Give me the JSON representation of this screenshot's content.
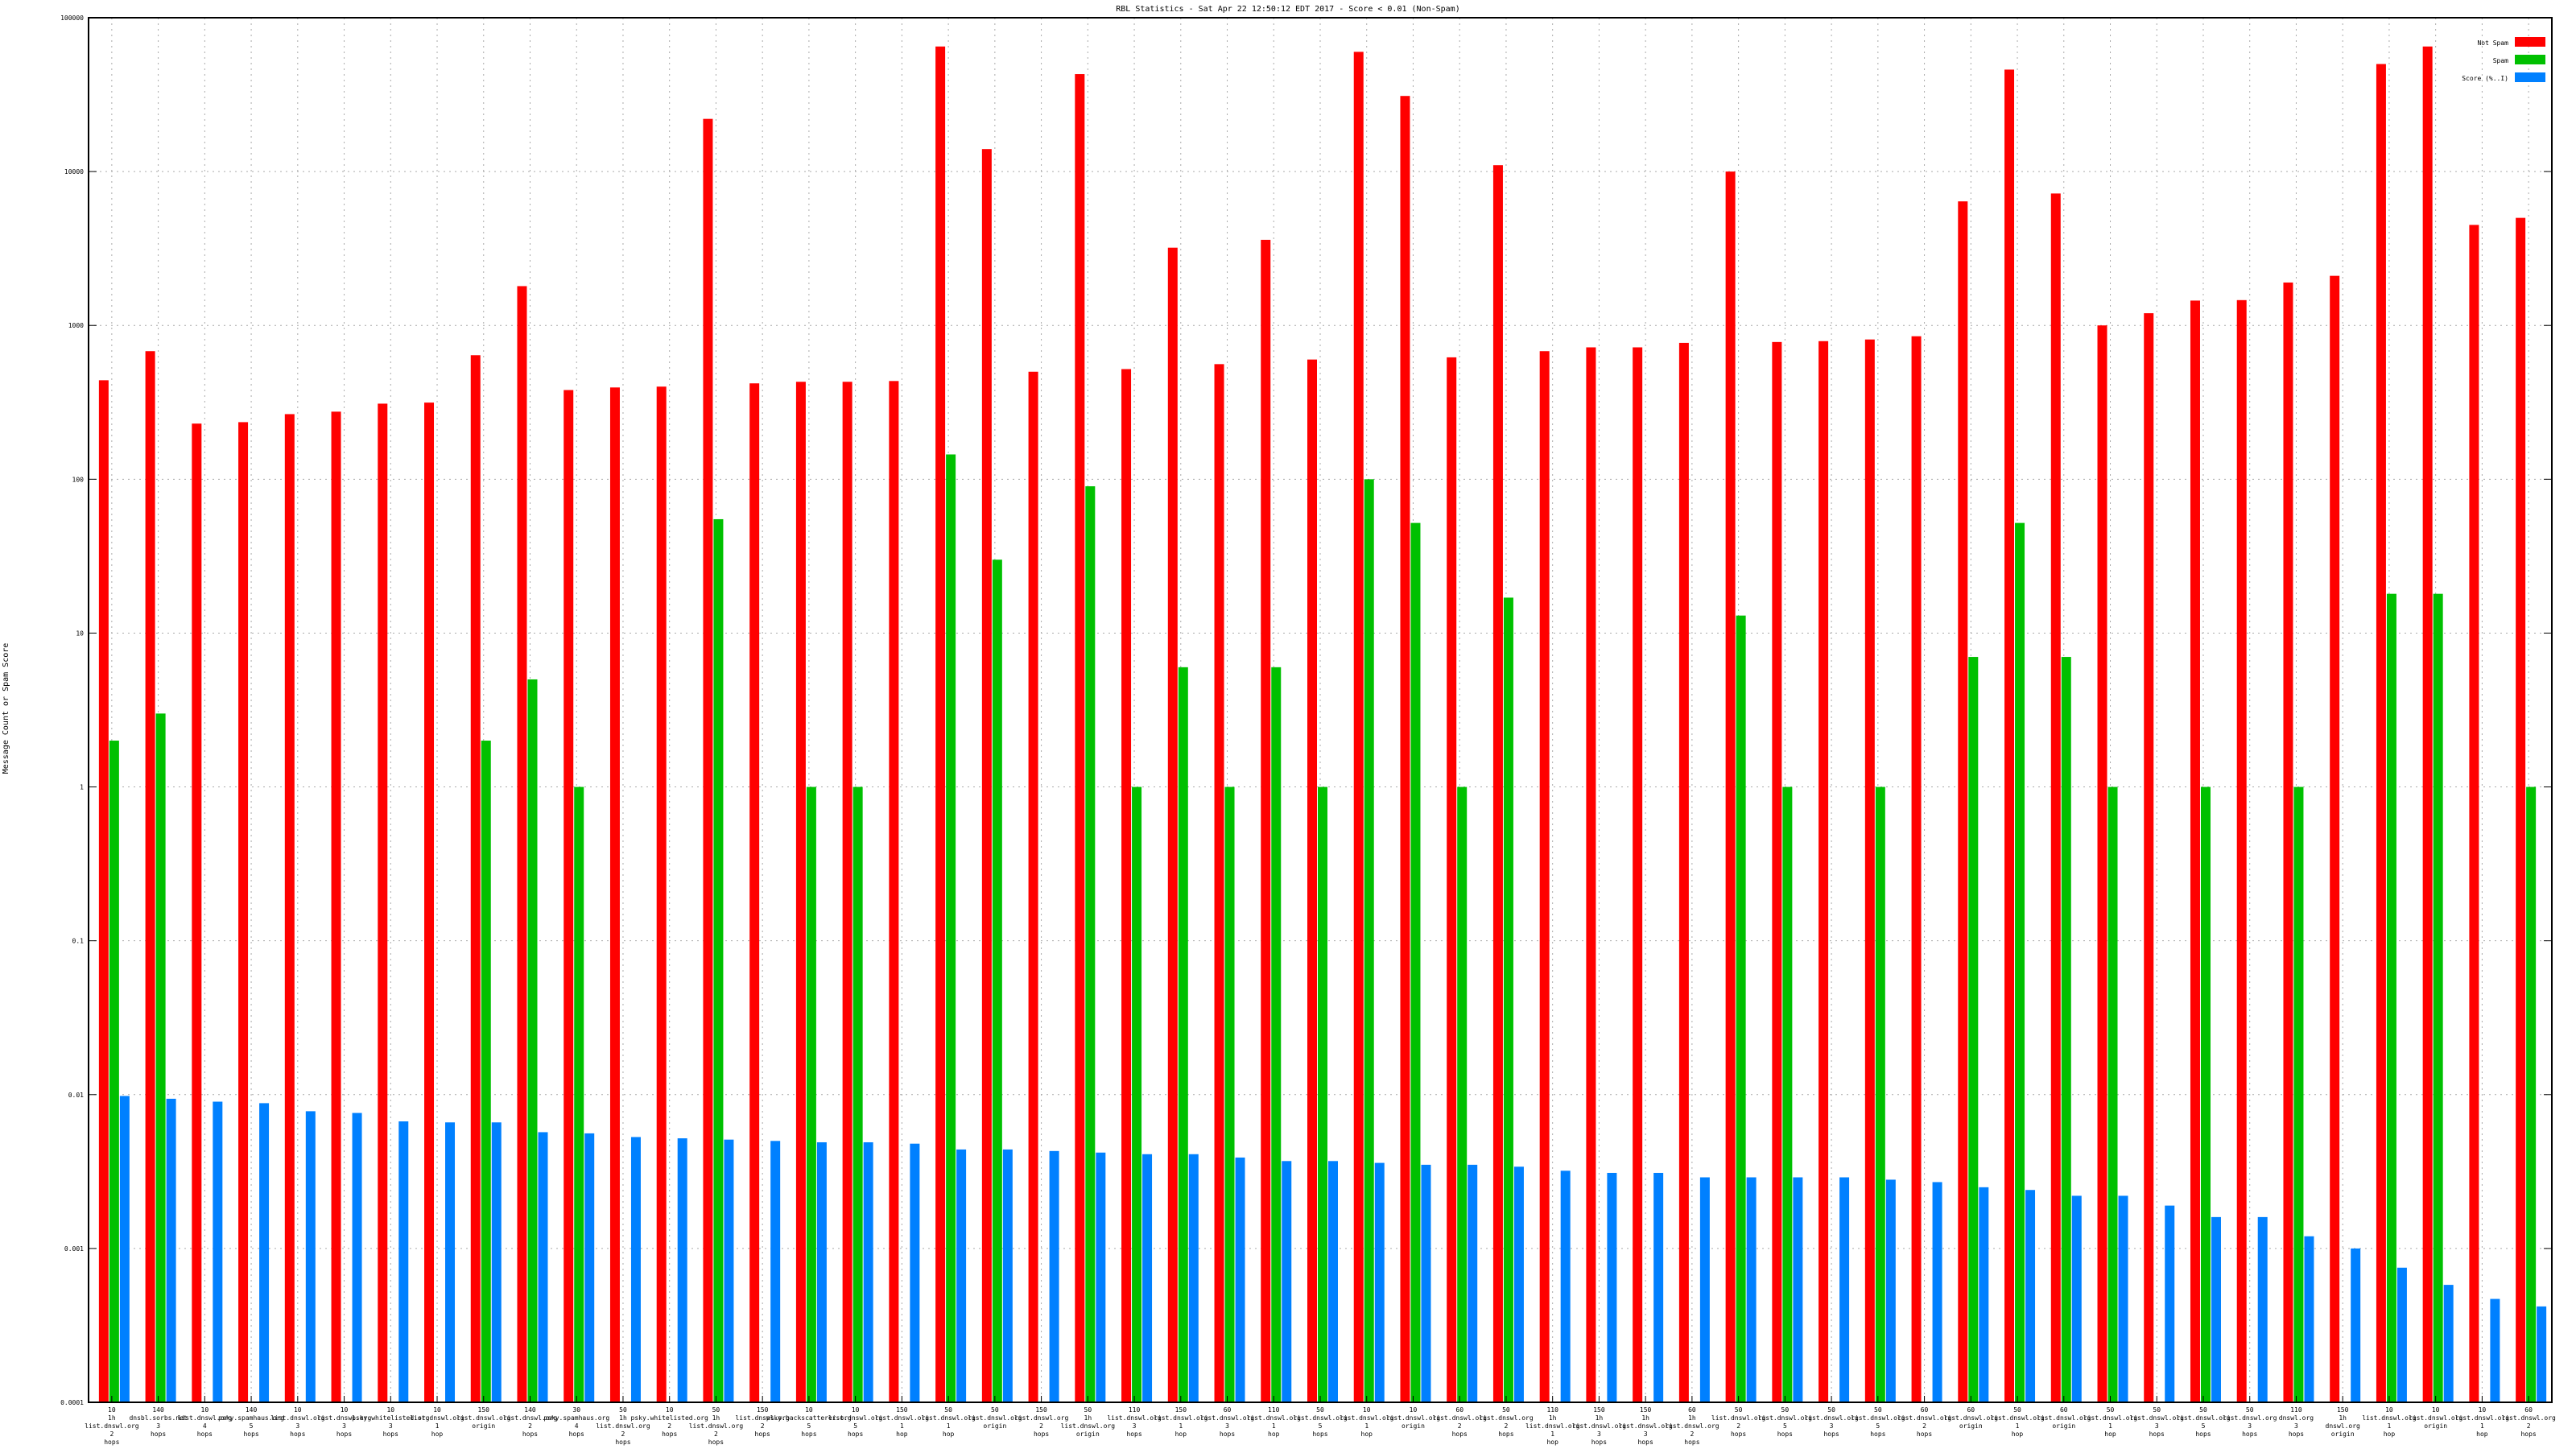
{
  "chart_data": {
    "type": "bar",
    "title": "RBL Statistics - Sat Apr 22 12:50:12 EDT 2017 - Score < 0.01 (Non-Spam)",
    "ylabel": "Message Count or Spam Score",
    "xlabel": "",
    "yscale": "log",
    "ylim": [
      0.0001,
      100000
    ],
    "yticks": [
      "0.0001",
      "0.001",
      "0.01",
      "0.1",
      "1",
      "10",
      "100",
      "1000",
      "10000",
      "100000"
    ],
    "grid": true,
    "legend_position": "top-right",
    "colors": {
      "not_spam": "#ff0000",
      "spam": "#00c000",
      "score": "#0080ff"
    },
    "categories": [
      "10 1h list.dnswl.org 2 hops",
      "140 dnsbl.sorbs.net 3 hops",
      "10 list.dnswl.org 4 hops",
      "140 psky.spamhaus.org 5 hops",
      "10 list.dnswl.org 3 hops",
      "10 list.dnswl.org 3 hops",
      "10 psky.whitelisted.org 3 hops",
      "10 list.dnswl.org 1 hop",
      "150 list.dnswl.org origin",
      "140 list.dnswl.org 2 hops",
      "30 psky.spamhaus.org 4 hops",
      "50 1h list.dnswl.org 2 hops",
      "10 psky.whitelisted.org 2 hops",
      "50 1h list.dnswl.org 2 hops",
      "150 list.dnswl.org 2 hops",
      "10 psky.backscatterer.org 5 hops",
      "10 list.dnswl.org 5 hops",
      "150 list.dnswl.org 1 hop",
      "50 list.dnswl.org 1 hop",
      "50 list.dnswl.org origin",
      "150 list.dnswl.org 2 hops",
      "50 1h list.dnswl.org origin",
      "110 list.dnswl.org 3 hops",
      "150 list.dnswl.org 1 hop",
      "60 list.dnswl.org 3 hops",
      "110 list.dnswl.org 1 hop",
      "50 list.dnswl.org 5 hops",
      "10 list.dnswl.org 1 hop",
      "10 list.dnswl.org origin",
      "60 list.dnswl.org 2 hops",
      "50 list.dnswl.org 2 hops",
      "110 1h list.dnswl.org 1 hop",
      "150 1h list.dnswl.org 3 hops",
      "150 1h list.dnswl.org 3 hops",
      "60 1h list.dnswl.org 2 hops",
      "50 list.dnswl.org 2 hops",
      "50 list.dnswl.org 5 hops",
      "50 list.dnswl.org 3 hops",
      "50 list.dnswl.org 5 hops",
      "60 list.dnswl.org 2 hops",
      "60 list.dnswl.org origin",
      "50 list.dnswl.org 1 hop",
      "60 list.dnswl.org origin",
      "50 list.dnswl.org 1 hop",
      "50 list.dnswl.org 3 hops",
      "50 list.dnswl.org 5 hops",
      "50 list.dnswl.org 3 hops",
      "110 dnswl.org 3 hops",
      "150 1h dnswl.org origin",
      "10 list.dnswl.org 1 hop",
      "10 list.dnswl.org origin",
      "10 list.dnswl.org 1 hop",
      "60 list.dnswl.org 2 hops"
    ],
    "series": [
      {
        "name": "Not Spam",
        "values": [
          440,
          680,
          230,
          235,
          265,
          275,
          310,
          315,
          640,
          1800,
          380,
          395,
          400,
          22000,
          420,
          430,
          430,
          435,
          65000,
          14000,
          500,
          43000,
          520,
          3200,
          560,
          3600,
          600,
          60000,
          31000,
          620,
          11000,
          680,
          720,
          720,
          770,
          10000,
          780,
          790,
          810,
          850,
          6400,
          46000,
          7200,
          1000,
          1200,
          1450,
          1460,
          1900,
          2100,
          50000,
          65000,
          4500,
          5000
        ]
      },
      {
        "name": "Spam",
        "values": [
          2,
          3,
          null,
          null,
          null,
          null,
          null,
          null,
          2,
          5,
          1,
          null,
          null,
          55,
          null,
          1,
          1,
          null,
          145,
          30,
          null,
          90,
          1,
          6,
          1,
          6,
          1,
          100,
          52,
          1,
          17,
          null,
          null,
          null,
          null,
          13,
          1,
          null,
          1,
          null,
          7,
          52,
          7,
          1,
          null,
          1,
          null,
          1,
          null,
          18,
          18,
          null,
          1
        ]
      },
      {
        "name": "Score (%..I)",
        "values": [
          0.0098,
          0.0094,
          0.009,
          0.0088,
          0.0078,
          0.0076,
          0.0067,
          0.0066,
          0.0066,
          0.0057,
          0.0056,
          0.0053,
          0.0052,
          0.0051,
          0.005,
          0.0049,
          0.0049,
          0.0048,
          0.0044,
          0.0044,
          0.0043,
          0.0042,
          0.0041,
          0.0041,
          0.0039,
          0.0037,
          0.0037,
          0.0036,
          0.0035,
          0.0035,
          0.0034,
          0.0032,
          0.0031,
          0.0031,
          0.0029,
          0.0029,
          0.0029,
          0.0029,
          0.0028,
          0.0027,
          0.0025,
          0.0024,
          0.0022,
          0.0022,
          0.0019,
          0.0016,
          0.0016,
          0.0012,
          0.001,
          0.00075,
          0.00058,
          0.00047,
          0.00042
        ]
      }
    ]
  }
}
